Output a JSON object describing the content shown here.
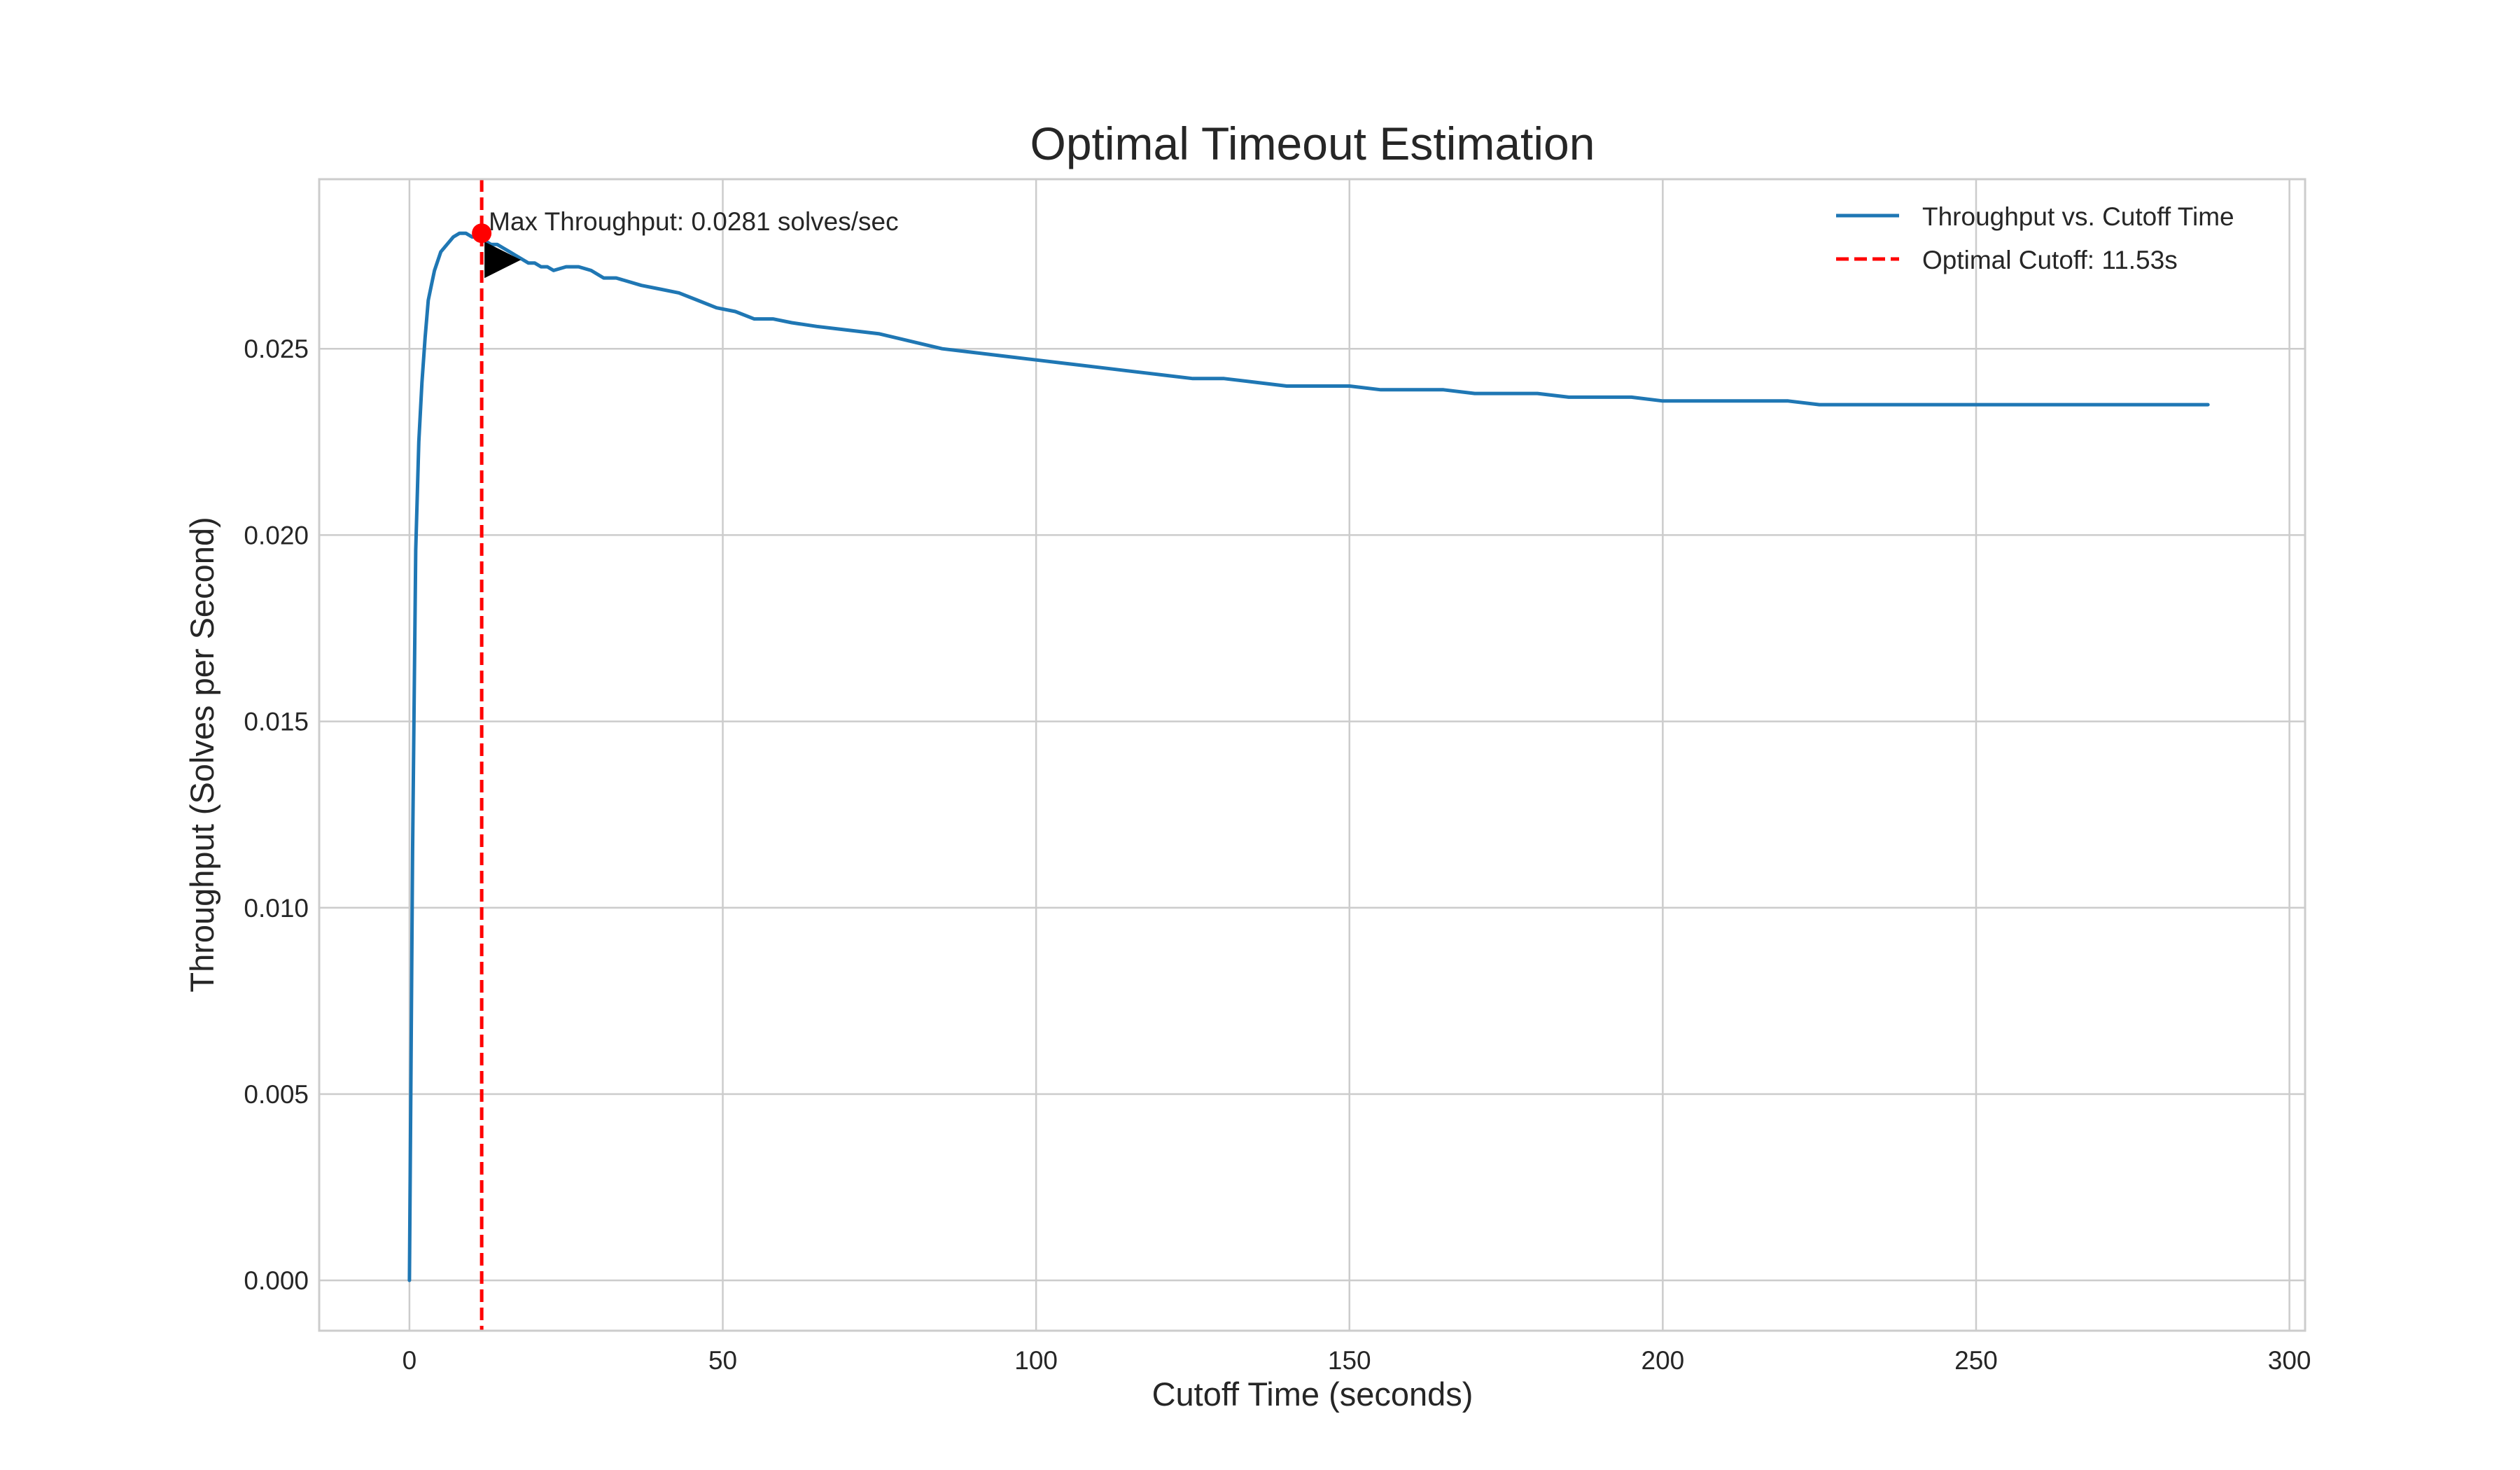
{
  "chart_data": {
    "type": "line",
    "title": "Optimal Timeout Estimation",
    "xlabel": "Cutoff Time (seconds)",
    "ylabel": "Throughput (Solves per Second)",
    "xlim": [
      -14.4,
      302.5
    ],
    "ylim": [
      -0.00135,
      0.02955
    ],
    "xticks": [
      0,
      50,
      100,
      150,
      200,
      250,
      300
    ],
    "xtick_labels": [
      "0",
      "50",
      "100",
      "150",
      "200",
      "250",
      "300"
    ],
    "yticks": [
      0.0,
      0.005,
      0.01,
      0.015,
      0.02,
      0.025
    ],
    "ytick_labels": [
      "0.000",
      "0.005",
      "0.010",
      "0.015",
      "0.020",
      "0.025"
    ],
    "grid": true,
    "legend_placement": "top-right",
    "series": [
      {
        "name": "Throughput vs. Cutoff Time",
        "color": "#1f77b4",
        "style": "solid",
        "x": [
          0,
          0.5,
          1,
          1.5,
          2,
          2.5,
          3,
          3.5,
          4,
          5,
          6,
          7,
          8,
          9,
          10,
          11,
          11.53,
          12,
          13,
          14,
          15,
          16,
          17,
          18,
          19,
          20,
          21,
          22,
          23,
          25,
          27,
          29,
          31,
          33,
          35,
          37,
          40,
          43,
          46,
          49,
          52,
          55,
          58,
          61,
          65,
          70,
          75,
          80,
          85,
          90,
          95,
          100,
          105,
          110,
          115,
          120,
          125,
          130,
          135,
          140,
          145,
          150,
          155,
          160,
          165,
          170,
          175,
          180,
          185,
          190,
          195,
          200,
          205,
          210,
          215,
          220,
          225,
          230,
          235,
          240,
          245,
          247,
          250,
          255,
          260,
          265,
          270,
          275,
          280,
          285,
          287
        ],
        "y": [
          0.0,
          0.0115,
          0.0196,
          0.0225,
          0.0241,
          0.0253,
          0.0263,
          0.0267,
          0.0271,
          0.0276,
          0.0278,
          0.028,
          0.0281,
          0.0281,
          0.028,
          0.028,
          0.0281,
          0.0279,
          0.0278,
          0.0278,
          0.0277,
          0.0276,
          0.0275,
          0.0274,
          0.0273,
          0.0273,
          0.0272,
          0.0272,
          0.0271,
          0.0272,
          0.0272,
          0.0271,
          0.0269,
          0.0269,
          0.0268,
          0.0267,
          0.0266,
          0.0265,
          0.0263,
          0.0261,
          0.026,
          0.0258,
          0.0258,
          0.0257,
          0.0256,
          0.0255,
          0.0254,
          0.0252,
          0.025,
          0.0249,
          0.0248,
          0.0247,
          0.0246,
          0.0245,
          0.0244,
          0.0243,
          0.0242,
          0.0242,
          0.0241,
          0.024,
          0.024,
          0.024,
          0.0239,
          0.0239,
          0.0239,
          0.0238,
          0.0238,
          0.0238,
          0.0237,
          0.0237,
          0.0237,
          0.0236,
          0.0236,
          0.0236,
          0.0236,
          0.0236,
          0.0235,
          0.0235,
          0.0235,
          0.0235,
          0.0235,
          0.0235,
          0.0235,
          0.0235,
          0.0235,
          0.0235,
          0.0235,
          0.0235,
          0.0235,
          0.0235,
          0.0235
        ]
      },
      {
        "name": "Optimal Cutoff: 11.53s",
        "color": "#ff0000",
        "style": "dashed",
        "x_constant": 11.53
      }
    ],
    "annotations": [
      {
        "text": "Max Throughput: 0.0281 solves/sec",
        "point": [
          11.53,
          0.0281
        ],
        "marker_color": "#ff0000",
        "arrow_color": "#000000"
      }
    ]
  }
}
